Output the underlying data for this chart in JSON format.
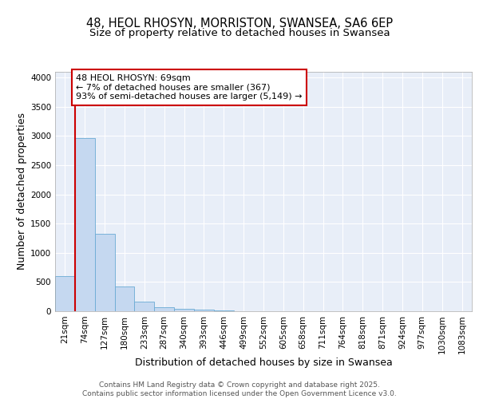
{
  "title_line1": "48, HEOL RHOSYN, MORRISTON, SWANSEA, SA6 6EP",
  "title_line2": "Size of property relative to detached houses in Swansea",
  "xlabel": "Distribution of detached houses by size in Swansea",
  "ylabel": "Number of detached properties",
  "bin_labels": [
    "21sqm",
    "74sqm",
    "127sqm",
    "180sqm",
    "233sqm",
    "287sqm",
    "340sqm",
    "393sqm",
    "446sqm",
    "499sqm",
    "552sqm",
    "605sqm",
    "658sqm",
    "711sqm",
    "764sqm",
    "818sqm",
    "871sqm",
    "924sqm",
    "977sqm",
    "1030sqm",
    "1083sqm"
  ],
  "bar_values": [
    600,
    2970,
    1330,
    420,
    170,
    75,
    40,
    30,
    10,
    5,
    0,
    0,
    0,
    0,
    0,
    0,
    0,
    0,
    0,
    0,
    0
  ],
  "bar_color": "#c5d8f0",
  "bar_edge_color": "#6aaad4",
  "background_color": "#e8eef8",
  "grid_color": "#ffffff",
  "annotation_text": "48 HEOL RHOSYN: 69sqm\n← 7% of detached houses are smaller (367)\n93% of semi-detached houses are larger (5,149) →",
  "annotation_box_color": "#ffffff",
  "annotation_box_edge": "#cc0000",
  "vline_color": "#cc0000",
  "ylim": [
    0,
    4100
  ],
  "yticks": [
    0,
    500,
    1000,
    1500,
    2000,
    2500,
    3000,
    3500,
    4000
  ],
  "footer_text": "Contains HM Land Registry data © Crown copyright and database right 2025.\nContains public sector information licensed under the Open Government Licence v3.0.",
  "title_fontsize": 10.5,
  "subtitle_fontsize": 9.5,
  "axis_label_fontsize": 9,
  "tick_fontsize": 7.5,
  "annotation_fontsize": 8,
  "footer_fontsize": 6.5
}
